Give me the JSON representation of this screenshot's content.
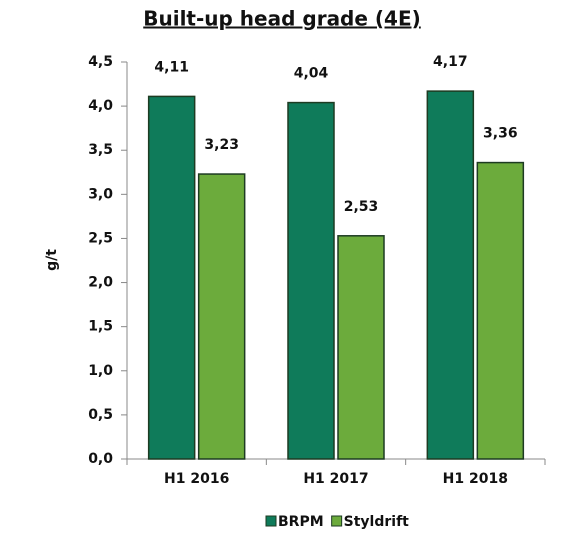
{
  "chart_data": {
    "type": "bar",
    "title": "Built-up head grade (4E)",
    "y_label": "g/t",
    "categories": [
      "H1 2016",
      "H1 2017",
      "H1 2018"
    ],
    "series": [
      {
        "name": "BRPM",
        "color": "#0f7b5a",
        "values": [
          4.11,
          4.04,
          4.17
        ],
        "value_labels": [
          "4,11",
          "4,04",
          "4,17"
        ]
      },
      {
        "name": "Styldrift",
        "color": "#6cab3c",
        "values": [
          3.23,
          2.53,
          3.36
        ],
        "value_labels": [
          "3,23",
          "2,53",
          "3,36"
        ]
      }
    ],
    "ylim": [
      0,
      4.5
    ],
    "yticks": [
      {
        "value": 0,
        "label": "0,0"
      },
      {
        "value": 0.5,
        "label": "0,5"
      },
      {
        "value": 1,
        "label": "1,0"
      },
      {
        "value": 1.5,
        "label": "1,5"
      },
      {
        "value": 2,
        "label": "2,0"
      },
      {
        "value": 2.5,
        "label": "2,5"
      },
      {
        "value": 3,
        "label": "3,0"
      },
      {
        "value": 3.5,
        "label": "3,5"
      },
      {
        "value": 4,
        "label": "4,0"
      },
      {
        "value": 4.5,
        "label": "4,5"
      }
    ],
    "legend": "bottom",
    "grid": false
  }
}
